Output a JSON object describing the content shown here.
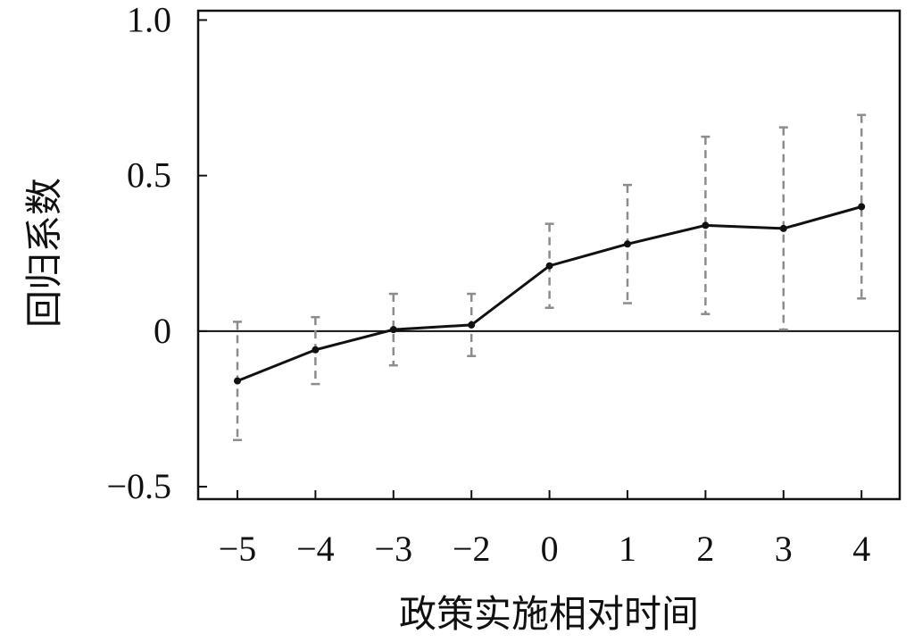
{
  "chart_data": {
    "type": "line",
    "title": "",
    "xlabel": "政策实施相对时间",
    "ylabel": "回归系数",
    "categories": [
      "−5",
      "−4",
      "−3",
      "−2",
      "0",
      "1",
      "2",
      "3",
      "4"
    ],
    "series": [
      {
        "values": [
          -0.16,
          -0.06,
          0.005,
          0.02,
          0.21,
          0.28,
          0.34,
          0.33,
          0.4
        ],
        "ci_lower": [
          -0.35,
          -0.17,
          -0.11,
          -0.08,
          0.075,
          0.09,
          0.055,
          0.005,
          0.105
        ],
        "ci_upper": [
          0.03,
          0.045,
          0.12,
          0.12,
          0.345,
          0.47,
          0.625,
          0.655,
          0.695
        ]
      }
    ],
    "ylim": [
      -0.54,
      1.03
    ],
    "yticks": [
      1.0,
      0.5,
      0,
      -0.5
    ],
    "ytick_labels": [
      "1.0",
      "0.5",
      "0",
      "−0.5"
    ],
    "reference_line_y": 0,
    "grid": false,
    "colors": {
      "line": "#111111",
      "errorbar": "#8c8c8c",
      "axis": "#111111"
    }
  }
}
